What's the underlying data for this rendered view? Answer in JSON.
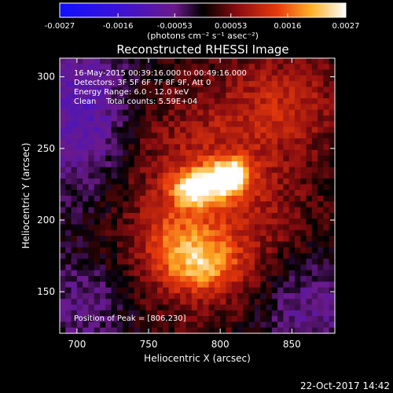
{
  "chart_data": {
    "type": "heatmap",
    "title": "Reconstructed RHESSI Image",
    "xlabel": "Heliocentric X (arcsec)",
    "ylabel": "Heliocentric Y (arcsec)",
    "xlim": [
      688,
      880
    ],
    "ylim": [
      121,
      313
    ],
    "x_ticks": [
      700,
      750,
      800,
      850
    ],
    "y_ticks": [
      150,
      200,
      250,
      300
    ],
    "colorbar": {
      "min": -0.0027,
      "max": 0.0027,
      "ticks": [
        -0.0027,
        -0.0016,
        -0.00053,
        0.00053,
        0.0016,
        0.0027
      ],
      "tick_labels": [
        "-0.0027",
        "-0.0016",
        "-0.00053",
        "0.00053",
        "0.0016",
        "0.0027"
      ],
      "units_label": "(photons cm⁻² s⁻¹ asec⁻²)",
      "colormap": "blue-purple-red-yellow-white"
    },
    "info_lines": [
      "16-May-2015 00:39:16.000 to 00:49:16.000",
      "Detectors: 3F 5F 6F 7F 8F 9F, Att 0",
      "Energy Range: 6.0 - 12.0 keV",
      "Clean    Total counts: 5.59E+04"
    ],
    "peak_label": "Position of Peak = [806,230]",
    "peak_position": [
      806,
      230
    ],
    "sources": [
      {
        "x": 806,
        "y": 230,
        "peak": 0.0027
      },
      {
        "x": 783,
        "y": 222,
        "peak": 0.0019
      },
      {
        "x": 792,
        "y": 168,
        "peak": 0.0011
      },
      {
        "x": 770,
        "y": 178,
        "peak": 0.0009
      }
    ],
    "grid": false
  },
  "timestamp": "22-Oct-2017 14:42"
}
